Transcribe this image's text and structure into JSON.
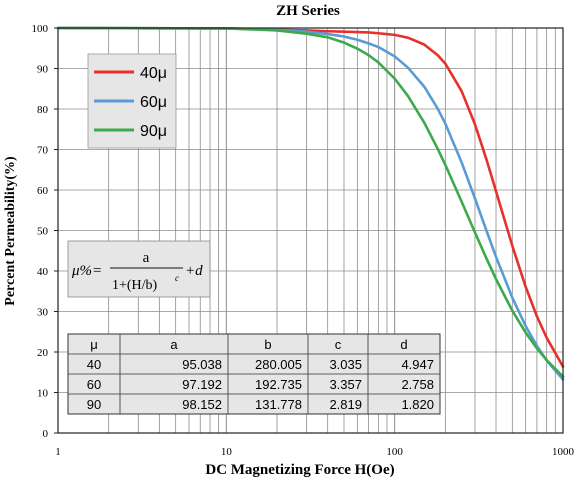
{
  "chart_data": {
    "type": "line",
    "title": "ZH Series",
    "xlabel": "DC Magnetizing Force H(Oe)",
    "ylabel": "Percent Permeability(%)",
    "x_scale": "log",
    "xlim": [
      1,
      1000
    ],
    "ylim": [
      0,
      100
    ],
    "x_ticks": [
      "1",
      "10",
      "100",
      "1000"
    ],
    "y_ticks": [
      "0",
      "10",
      "20",
      "30",
      "40",
      "50",
      "60",
      "70",
      "80",
      "90",
      "100"
    ],
    "grid": true,
    "legend_position": "top-left",
    "series": [
      {
        "name": "40μ",
        "color": "#e8302a",
        "x": [
          1,
          10,
          20,
          30,
          40,
          50,
          60,
          70,
          80,
          100,
          120,
          150,
          180,
          200,
          250,
          300,
          350,
          400,
          500,
          600,
          700,
          800,
          1000
        ],
        "y": [
          100,
          99.9,
          99.6,
          99.4,
          99.2,
          99.1,
          99.0,
          98.9,
          98.7,
          98.3,
          97.6,
          95.9,
          93.3,
          91.2,
          84.4,
          76.2,
          67.7,
          59.7,
          46.2,
          36.1,
          28.8,
          23.5,
          16.4
        ]
      },
      {
        "name": "60μ",
        "color": "#5b9bd5",
        "x": [
          1,
          10,
          20,
          30,
          40,
          50,
          60,
          70,
          80,
          100,
          120,
          150,
          180,
          200,
          250,
          300,
          350,
          400,
          500,
          600,
          700,
          800,
          1000
        ],
        "y": [
          100,
          99.9,
          99.6,
          99.1,
          98.5,
          97.9,
          97.1,
          96.2,
          95.3,
          93.0,
          90.2,
          85.5,
          80.1,
          76.4,
          66.8,
          57.9,
          50.1,
          43.5,
          33.4,
          26.4,
          21.5,
          17.9,
          13.2
        ]
      },
      {
        "name": "90μ",
        "color": "#3aaa4a",
        "x": [
          1,
          10,
          20,
          30,
          40,
          50,
          60,
          70,
          80,
          100,
          120,
          150,
          180,
          200,
          250,
          300,
          350,
          400,
          500,
          600,
          700,
          800,
          1000
        ],
        "y": [
          100,
          99.9,
          99.4,
          98.6,
          97.7,
          96.4,
          94.9,
          93.3,
          91.5,
          87.5,
          83.2,
          76.6,
          70.2,
          66.2,
          57.1,
          49.5,
          43.2,
          38.0,
          30.2,
          24.8,
          20.9,
          18.0,
          13.9
        ]
      }
    ],
    "formula": {
      "lhs": "μ%=",
      "numerator": "a",
      "denominator": "1+(H/b)",
      "exponent": "c",
      "tail": "+d"
    },
    "table": {
      "headers": [
        "μ",
        "a",
        "b",
        "c",
        "d"
      ],
      "rows": [
        [
          "40",
          "95.038",
          "280.005",
          "3.035",
          "4.947"
        ],
        [
          "60",
          "97.192",
          "192.735",
          "3.357",
          "2.758"
        ],
        [
          "90",
          "98.152",
          "131.778",
          "2.819",
          "1.820"
        ]
      ]
    }
  }
}
